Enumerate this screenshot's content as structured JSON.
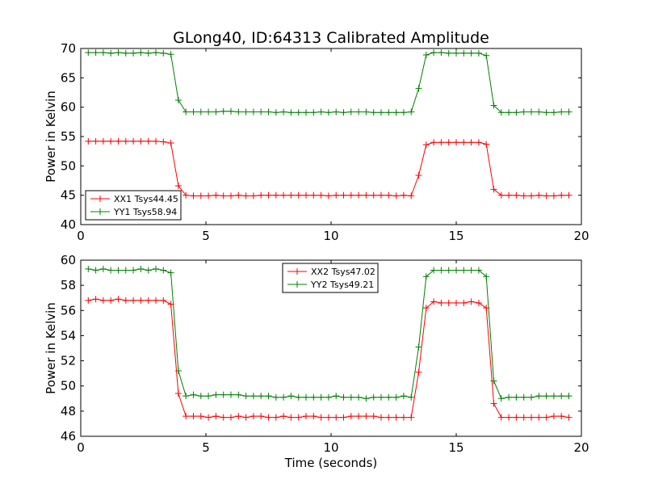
{
  "title": "GLong40, ID:64313 Calibrated Amplitude",
  "chart_data": [
    {
      "type": "line",
      "xlabel": "",
      "ylabel": "Power in Kelvin",
      "xlim": [
        0,
        20
      ],
      "ylim": [
        40,
        70
      ],
      "xticks": [
        "0",
        "5",
        "10",
        "15",
        "20"
      ],
      "yticks": [
        "40",
        "45",
        "50",
        "55",
        "60",
        "65",
        "70"
      ],
      "grid": false,
      "legend_position": "lower-left",
      "x": [
        0.3,
        0.6,
        0.9,
        1.2,
        1.5,
        1.8,
        2.1,
        2.4,
        2.7,
        3.0,
        3.3,
        3.6,
        3.9,
        4.2,
        4.5,
        4.8,
        5.1,
        5.4,
        5.7,
        6.0,
        6.3,
        6.6,
        6.9,
        7.2,
        7.5,
        7.8,
        8.1,
        8.4,
        8.7,
        9.0,
        9.3,
        9.6,
        9.9,
        10.2,
        10.5,
        10.8,
        11.1,
        11.4,
        11.7,
        12.0,
        12.3,
        12.6,
        12.9,
        13.2,
        13.5,
        13.8,
        14.1,
        14.4,
        14.7,
        15.0,
        15.3,
        15.6,
        15.9,
        16.2,
        16.5,
        16.8,
        17.1,
        17.4,
        17.7,
        18.0,
        18.3,
        18.6,
        18.9,
        19.2,
        19.5
      ],
      "series": [
        {
          "name": "XX1 Tsys44.45",
          "color": "#ff0000",
          "values": [
            54.2,
            54.2,
            54.2,
            54.2,
            54.2,
            54.2,
            54.2,
            54.2,
            54.2,
            54.2,
            54.1,
            53.9,
            46.6,
            45.0,
            44.9,
            44.9,
            44.9,
            45.0,
            44.9,
            44.9,
            45.0,
            44.9,
            44.9,
            45.0,
            45.0,
            45.0,
            45.0,
            45.0,
            45.0,
            45.0,
            45.0,
            45.0,
            44.9,
            45.0,
            45.0,
            45.0,
            45.0,
            45.0,
            45.0,
            45.0,
            45.0,
            44.9,
            45.0,
            44.9,
            48.4,
            53.6,
            54.0,
            54.0,
            54.0,
            54.0,
            54.0,
            54.0,
            54.0,
            53.7,
            46.0,
            45.0,
            45.0,
            45.0,
            44.9,
            44.9,
            45.0,
            44.9,
            44.9,
            45.0,
            45.0
          ]
        },
        {
          "name": "YY1 Tsys58.94",
          "color": "#008000",
          "values": [
            69.3,
            69.3,
            69.3,
            69.2,
            69.3,
            69.2,
            69.2,
            69.3,
            69.2,
            69.3,
            69.2,
            69.0,
            61.2,
            59.2,
            59.2,
            59.2,
            59.2,
            59.2,
            59.3,
            59.3,
            59.2,
            59.2,
            59.2,
            59.2,
            59.2,
            59.1,
            59.2,
            59.1,
            59.1,
            59.1,
            59.1,
            59.2,
            59.1,
            59.2,
            59.1,
            59.2,
            59.2,
            59.2,
            59.1,
            59.1,
            59.1,
            59.1,
            59.1,
            59.2,
            63.2,
            68.9,
            69.3,
            69.3,
            69.2,
            69.2,
            69.2,
            69.2,
            69.2,
            68.8,
            60.3,
            59.1,
            59.1,
            59.1,
            59.2,
            59.2,
            59.2,
            59.1,
            59.1,
            59.2,
            59.2
          ]
        }
      ]
    },
    {
      "type": "line",
      "xlabel": "Time (seconds)",
      "ylabel": "Power in Kelvin",
      "xlim": [
        0,
        20
      ],
      "ylim": [
        46,
        60
      ],
      "xticks": [
        "0",
        "5",
        "10",
        "15",
        "20"
      ],
      "yticks": [
        "46",
        "48",
        "50",
        "52",
        "54",
        "56",
        "58",
        "60"
      ],
      "grid": false,
      "legend_position": "upper-center",
      "x": [
        0.3,
        0.6,
        0.9,
        1.2,
        1.5,
        1.8,
        2.1,
        2.4,
        2.7,
        3.0,
        3.3,
        3.6,
        3.9,
        4.2,
        4.5,
        4.8,
        5.1,
        5.4,
        5.7,
        6.0,
        6.3,
        6.6,
        6.9,
        7.2,
        7.5,
        7.8,
        8.1,
        8.4,
        8.7,
        9.0,
        9.3,
        9.6,
        9.9,
        10.2,
        10.5,
        10.8,
        11.1,
        11.4,
        11.7,
        12.0,
        12.3,
        12.6,
        12.9,
        13.2,
        13.5,
        13.8,
        14.1,
        14.4,
        14.7,
        15.0,
        15.3,
        15.6,
        15.9,
        16.2,
        16.5,
        16.8,
        17.1,
        17.4,
        17.7,
        18.0,
        18.3,
        18.6,
        18.9,
        19.2,
        19.5
      ],
      "series": [
        {
          "name": "XX2 Tsys47.02",
          "color": "#ff0000",
          "values": [
            56.8,
            56.9,
            56.8,
            56.8,
            56.9,
            56.8,
            56.8,
            56.8,
            56.8,
            56.8,
            56.8,
            56.5,
            49.4,
            47.6,
            47.6,
            47.6,
            47.5,
            47.6,
            47.5,
            47.5,
            47.6,
            47.5,
            47.6,
            47.6,
            47.5,
            47.5,
            47.6,
            47.5,
            47.5,
            47.6,
            47.6,
            47.5,
            47.5,
            47.5,
            47.5,
            47.6,
            47.6,
            47.6,
            47.6,
            47.5,
            47.5,
            47.5,
            47.5,
            47.5,
            51.1,
            56.2,
            56.7,
            56.6,
            56.6,
            56.6,
            56.6,
            56.7,
            56.6,
            56.2,
            48.6,
            47.5,
            47.5,
            47.5,
            47.5,
            47.5,
            47.5,
            47.5,
            47.6,
            47.6,
            47.5
          ]
        },
        {
          "name": "YY2 Tsys49.21",
          "color": "#008000",
          "values": [
            59.3,
            59.2,
            59.3,
            59.2,
            59.2,
            59.2,
            59.2,
            59.3,
            59.2,
            59.3,
            59.2,
            59.0,
            51.2,
            49.2,
            49.3,
            49.2,
            49.2,
            49.3,
            49.3,
            49.3,
            49.3,
            49.2,
            49.2,
            49.2,
            49.2,
            49.1,
            49.1,
            49.2,
            49.1,
            49.1,
            49.1,
            49.1,
            49.1,
            49.2,
            49.1,
            49.1,
            49.1,
            49.0,
            49.1,
            49.1,
            49.1,
            49.1,
            49.2,
            49.1,
            53.1,
            58.7,
            59.2,
            59.2,
            59.2,
            59.2,
            59.2,
            59.2,
            59.2,
            58.7,
            50.4,
            49.0,
            49.1,
            49.1,
            49.1,
            49.1,
            49.2,
            49.2,
            49.2,
            49.2,
            49.2
          ]
        }
      ]
    }
  ]
}
